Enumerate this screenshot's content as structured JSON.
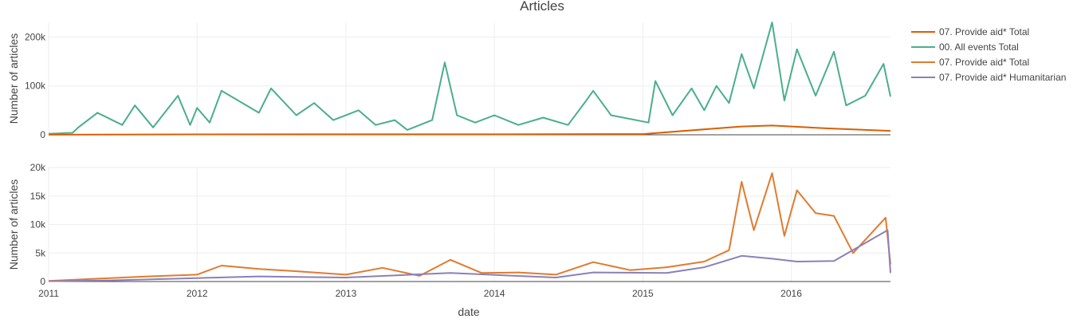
{
  "chart_data": {
    "type": "line",
    "title": "Articles",
    "xlabel": "date",
    "x_ticks": [
      "2011",
      "2012",
      "2013",
      "2014",
      "2015",
      "2016"
    ],
    "x_range": [
      "2011-01-01",
      "2016-09-01"
    ],
    "colors": {
      "provide_aid_total_a": "#d95f02",
      "all_events_total": "#4aae8c",
      "provide_aid_total_b": "#e07b2e",
      "provide_aid_humanitarian": "#8b80b9"
    },
    "legend": [
      {
        "name": "07. Provide aid*  Total",
        "color": "#d95f02"
      },
      {
        "name": "00. All events Total",
        "color": "#4aae8c"
      },
      {
        "name": "07. Provide aid*  Total",
        "color": "#e07b2e"
      },
      {
        "name": "07. Provide aid* Humanitarian",
        "color": "#8b80b9"
      }
    ],
    "panels": [
      {
        "ylabel": "Number of articles",
        "ylim": [
          0,
          230000
        ],
        "y_ticks": [
          0,
          100000,
          200000
        ],
        "y_tick_labels": [
          "0",
          "100k",
          "200k"
        ],
        "series": [
          {
            "name": "00. All events Total",
            "color": "#4aae8c",
            "points": [
              [
                "2011-01-01",
                2000
              ],
              [
                "2011-03-01",
                4000
              ],
              [
                "2011-03-15",
                15000
              ],
              [
                "2011-05-01",
                45000
              ],
              [
                "2011-07-01",
                20000
              ],
              [
                "2011-08-01",
                60000
              ],
              [
                "2011-09-15",
                15000
              ],
              [
                "2011-11-15",
                80000
              ],
              [
                "2011-12-15",
                20000
              ],
              [
                "2012-01-01",
                55000
              ],
              [
                "2012-02-01",
                25000
              ],
              [
                "2012-03-01",
                90000
              ],
              [
                "2012-04-01",
                75000
              ],
              [
                "2012-06-01",
                45000
              ],
              [
                "2012-07-01",
                95000
              ],
              [
                "2012-09-01",
                40000
              ],
              [
                "2012-10-15",
                65000
              ],
              [
                "2012-12-01",
                30000
              ],
              [
                "2013-02-01",
                50000
              ],
              [
                "2013-03-15",
                20000
              ],
              [
                "2013-05-01",
                30000
              ],
              [
                "2013-06-01",
                10000
              ],
              [
                "2013-08-01",
                30000
              ],
              [
                "2013-09-01",
                148000
              ],
              [
                "2013-10-01",
                40000
              ],
              [
                "2013-11-15",
                25000
              ],
              [
                "2014-01-01",
                40000
              ],
              [
                "2014-03-01",
                20000
              ],
              [
                "2014-05-01",
                35000
              ],
              [
                "2014-07-01",
                20000
              ],
              [
                "2014-08-15",
                70000
              ],
              [
                "2014-09-01",
                90000
              ],
              [
                "2014-10-15",
                40000
              ],
              [
                "2015-01-15",
                25000
              ],
              [
                "2015-02-01",
                110000
              ],
              [
                "2015-03-15",
                40000
              ],
              [
                "2015-05-01",
                95000
              ],
              [
                "2015-06-01",
                50000
              ],
              [
                "2015-07-01",
                100000
              ],
              [
                "2015-08-01",
                65000
              ],
              [
                "2015-09-01",
                165000
              ],
              [
                "2015-10-01",
                95000
              ],
              [
                "2015-11-15",
                230000
              ],
              [
                "2015-12-15",
                70000
              ],
              [
                "2016-01-15",
                175000
              ],
              [
                "2016-03-01",
                80000
              ],
              [
                "2016-04-15",
                170000
              ],
              [
                "2016-05-15",
                60000
              ],
              [
                "2016-07-01",
                80000
              ],
              [
                "2016-08-15",
                145000
              ],
              [
                "2016-09-01",
                78000
              ]
            ]
          },
          {
            "name": "07. Provide aid*  Total",
            "color": "#d95f02",
            "points": [
              [
                "2011-01-01",
                200
              ],
              [
                "2012-01-01",
                800
              ],
              [
                "2013-01-01",
                1000
              ],
              [
                "2014-01-01",
                900
              ],
              [
                "2015-01-01",
                1500
              ],
              [
                "2015-09-01",
                17000
              ],
              [
                "2015-11-15",
                19000
              ],
              [
                "2016-04-01",
                13000
              ],
              [
                "2016-09-01",
                8000
              ]
            ]
          }
        ]
      },
      {
        "ylabel": "Number of articles",
        "ylim": [
          0,
          20000
        ],
        "y_ticks": [
          0,
          5000,
          10000,
          15000,
          20000
        ],
        "y_tick_labels": [
          "0",
          "5k",
          "10k",
          "15k",
          "20k"
        ],
        "series": [
          {
            "name": "07. Provide aid*  Total",
            "color": "#e07b2e",
            "points": [
              [
                "2011-01-01",
                100
              ],
              [
                "2011-03-01",
                300
              ],
              [
                "2011-06-01",
                600
              ],
              [
                "2011-09-01",
                900
              ],
              [
                "2012-01-01",
                1200
              ],
              [
                "2012-03-01",
                2800
              ],
              [
                "2012-06-01",
                2200
              ],
              [
                "2012-09-01",
                1800
              ],
              [
                "2013-01-01",
                1200
              ],
              [
                "2013-04-01",
                2400
              ],
              [
                "2013-07-01",
                1000
              ],
              [
                "2013-09-15",
                3800
              ],
              [
                "2013-12-01",
                1500
              ],
              [
                "2014-03-01",
                1600
              ],
              [
                "2014-06-01",
                1200
              ],
              [
                "2014-09-01",
                3400
              ],
              [
                "2014-12-01",
                2000
              ],
              [
                "2015-03-01",
                2500
              ],
              [
                "2015-06-01",
                3500
              ],
              [
                "2015-08-01",
                5500
              ],
              [
                "2015-09-01",
                17500
              ],
              [
                "2015-10-01",
                9000
              ],
              [
                "2015-11-15",
                19000
              ],
              [
                "2015-12-15",
                8000
              ],
              [
                "2016-01-15",
                16000
              ],
              [
                "2016-03-01",
                12000
              ],
              [
                "2016-04-15",
                11500
              ],
              [
                "2016-06-01",
                5000
              ],
              [
                "2016-08-20",
                11200
              ],
              [
                "2016-09-01",
                3000
              ]
            ]
          },
          {
            "name": "07. Provide aid* Humanitarian",
            "color": "#8b80b9",
            "points": [
              [
                "2011-01-01",
                50
              ],
              [
                "2011-06-01",
                200
              ],
              [
                "2012-01-01",
                600
              ],
              [
                "2012-06-01",
                900
              ],
              [
                "2013-01-01",
                700
              ],
              [
                "2013-09-15",
                1500
              ],
              [
                "2014-06-01",
                700
              ],
              [
                "2014-09-01",
                1600
              ],
              [
                "2015-03-01",
                1500
              ],
              [
                "2015-06-01",
                2500
              ],
              [
                "2015-09-01",
                4500
              ],
              [
                "2015-11-15",
                4000
              ],
              [
                "2016-01-15",
                3500
              ],
              [
                "2016-04-15",
                3600
              ],
              [
                "2016-08-25",
                9000
              ],
              [
                "2016-09-01",
                1500
              ]
            ]
          }
        ]
      }
    ]
  }
}
